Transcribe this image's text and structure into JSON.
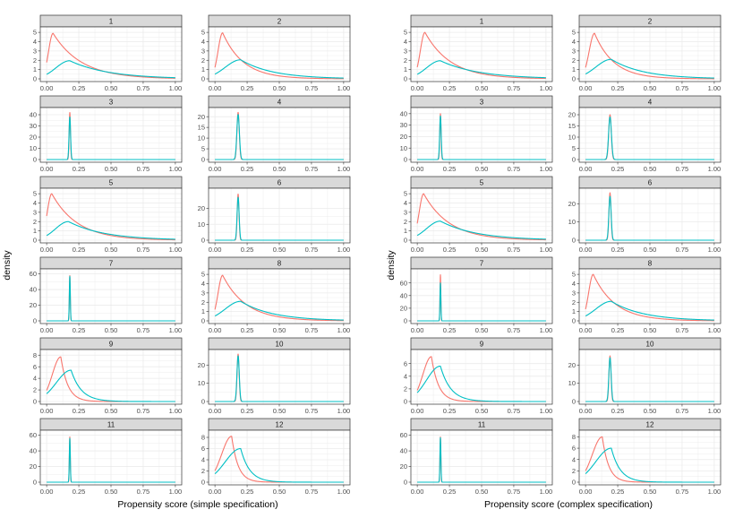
{
  "colors": {
    "treated": "#F8766D",
    "control": "#00BFC4",
    "strip_fill": "#D9D9D9",
    "grid": "#EBEBEB",
    "border": "#333333"
  },
  "chart_data": [
    {
      "type": "line",
      "title": "",
      "xlabel": "Propensity score (simple specification)",
      "ylabel": "density",
      "xlim": [
        0,
        1
      ],
      "x_ticks": [
        "0.00",
        "0.25",
        "0.50",
        "0.75",
        "1.00"
      ],
      "series_names": [
        "red",
        "teal"
      ],
      "panels": [
        {
          "label": "1",
          "ylim": [
            0,
            5.3
          ],
          "y_ticks": [
            0,
            1,
            2,
            3,
            4,
            5
          ],
          "red": {
            "type": "skew",
            "mode": 0.05,
            "peak": 4.9,
            "tail": 0.22
          },
          "teal": {
            "type": "skew",
            "mode": 0.18,
            "peak": 1.95,
            "tail": 0.3
          }
        },
        {
          "label": "2",
          "ylim": [
            0,
            5.3
          ],
          "y_ticks": [
            0,
            1,
            2,
            3,
            4,
            5
          ],
          "red": {
            "type": "skew",
            "mode": 0.06,
            "peak": 4.95,
            "tail": 0.16
          },
          "teal": {
            "type": "skew",
            "mode": 0.2,
            "peak": 2.05,
            "tail": 0.25
          }
        },
        {
          "label": "3",
          "ylim": [
            0,
            44
          ],
          "y_ticks": [
            0,
            10,
            20,
            30,
            40
          ],
          "red": {
            "type": "peak",
            "center": 0.18,
            "peak": 42,
            "sd": 0.005
          },
          "teal": {
            "type": "peak",
            "center": 0.18,
            "peak": 38,
            "sd": 0.006
          }
        },
        {
          "label": "4",
          "ylim": [
            0,
            23
          ],
          "y_ticks": [
            0,
            5,
            10,
            15,
            20
          ],
          "red": {
            "type": "peak",
            "center": 0.18,
            "peak": 22,
            "sd": 0.009
          },
          "teal": {
            "type": "peak",
            "center": 0.18,
            "peak": 21,
            "sd": 0.01
          }
        },
        {
          "label": "5",
          "ylim": [
            0,
            5.3
          ],
          "y_ticks": [
            0,
            1,
            2,
            3,
            4,
            5
          ],
          "red": {
            "type": "skew",
            "mode": 0.04,
            "peak": 5.0,
            "tail": 0.2
          },
          "teal": {
            "type": "skew",
            "mode": 0.17,
            "peak": 2.0,
            "tail": 0.28
          }
        },
        {
          "label": "6",
          "ylim": [
            0,
            31
          ],
          "y_ticks": [
            0,
            10,
            20
          ],
          "red": {
            "type": "peak",
            "center": 0.18,
            "peak": 29,
            "sd": 0.007
          },
          "teal": {
            "type": "peak",
            "center": 0.18,
            "peak": 27,
            "sd": 0.008
          }
        },
        {
          "label": "7",
          "ylim": [
            0,
            63
          ],
          "y_ticks": [
            0,
            20,
            40,
            60
          ],
          "red": {
            "type": "peak",
            "center": 0.18,
            "peak": 58,
            "sd": 0.0035
          },
          "teal": {
            "type": "peak",
            "center": 0.18,
            "peak": 57,
            "sd": 0.0038
          }
        },
        {
          "label": "8",
          "ylim": [
            0,
            5.3
          ],
          "y_ticks": [
            0,
            1,
            2,
            3,
            4,
            5
          ],
          "red": {
            "type": "skew",
            "mode": 0.06,
            "peak": 4.9,
            "tail": 0.18
          },
          "teal": {
            "type": "skew",
            "mode": 0.2,
            "peak": 2.1,
            "tail": 0.25
          }
        },
        {
          "label": "9",
          "ylim": [
            0,
            8.5
          ],
          "y_ticks": [
            0,
            2,
            4,
            6,
            8
          ],
          "red": {
            "type": "skew",
            "mode": 0.11,
            "peak": 7.7,
            "tail": 0.055
          },
          "teal": {
            "type": "skew",
            "mode": 0.19,
            "peak": 5.4,
            "tail": 0.08
          }
        },
        {
          "label": "10",
          "ylim": [
            0,
            27
          ],
          "y_ticks": [
            0,
            10,
            20
          ],
          "red": {
            "type": "peak",
            "center": 0.18,
            "peak": 26,
            "sd": 0.008
          },
          "teal": {
            "type": "peak",
            "center": 0.18,
            "peak": 25,
            "sd": 0.009
          }
        },
        {
          "label": "11",
          "ylim": [
            0,
            63
          ],
          "y_ticks": [
            0,
            20,
            40,
            60
          ],
          "red": {
            "type": "peak",
            "center": 0.18,
            "peak": 58,
            "sd": 0.0035
          },
          "teal": {
            "type": "peak",
            "center": 0.18,
            "peak": 56,
            "sd": 0.0038
          }
        },
        {
          "label": "12",
          "ylim": [
            0,
            8.8
          ],
          "y_ticks": [
            0,
            2,
            4,
            6,
            8
          ],
          "red": {
            "type": "skew",
            "mode": 0.13,
            "peak": 8.2,
            "tail": 0.05
          },
          "teal": {
            "type": "skew",
            "mode": 0.2,
            "peak": 6.0,
            "tail": 0.07
          }
        }
      ]
    },
    {
      "type": "line",
      "title": "",
      "xlabel": "Propensity score (complex specification)",
      "ylabel": "density",
      "xlim": [
        0,
        1
      ],
      "x_ticks": [
        "0.00",
        "0.25",
        "0.50",
        "0.75",
        "1.00"
      ],
      "series_names": [
        "red",
        "teal"
      ],
      "panels": [
        {
          "label": "1",
          "ylim": [
            0,
            5.3
          ],
          "y_ticks": [
            0,
            1,
            2,
            3,
            4,
            5
          ],
          "red": {
            "type": "skew",
            "mode": 0.06,
            "peak": 5.0,
            "tail": 0.2
          },
          "teal": {
            "type": "skew",
            "mode": 0.18,
            "peak": 1.95,
            "tail": 0.3
          }
        },
        {
          "label": "2",
          "ylim": [
            0,
            5.3
          ],
          "y_ticks": [
            0,
            1,
            2,
            3,
            4,
            5
          ],
          "red": {
            "type": "skew",
            "mode": 0.07,
            "peak": 4.9,
            "tail": 0.15
          },
          "teal": {
            "type": "skew",
            "mode": 0.2,
            "peak": 2.1,
            "tail": 0.25
          }
        },
        {
          "label": "3",
          "ylim": [
            0,
            43
          ],
          "y_ticks": [
            0,
            10,
            20,
            30,
            40
          ],
          "red": {
            "type": "peak",
            "center": 0.18,
            "peak": 40,
            "sd": 0.005
          },
          "teal": {
            "type": "peak",
            "center": 0.18,
            "peak": 38,
            "sd": 0.006
          }
        },
        {
          "label": "4",
          "ylim": [
            0,
            22
          ],
          "y_ticks": [
            0,
            5,
            10,
            15,
            20
          ],
          "red": {
            "type": "peak",
            "center": 0.19,
            "peak": 20,
            "sd": 0.01
          },
          "teal": {
            "type": "peak",
            "center": 0.19,
            "peak": 19,
            "sd": 0.011
          }
        },
        {
          "label": "5",
          "ylim": [
            0,
            5.3
          ],
          "y_ticks": [
            0,
            1,
            2,
            3,
            4,
            5
          ],
          "red": {
            "type": "skew",
            "mode": 0.05,
            "peak": 5.0,
            "tail": 0.2
          },
          "teal": {
            "type": "skew",
            "mode": 0.18,
            "peak": 2.05,
            "tail": 0.28
          }
        },
        {
          "label": "6",
          "ylim": [
            0,
            27
          ],
          "y_ticks": [
            0,
            10,
            20
          ],
          "red": {
            "type": "peak",
            "center": 0.19,
            "peak": 26,
            "sd": 0.008
          },
          "teal": {
            "type": "peak",
            "center": 0.19,
            "peak": 24,
            "sd": 0.009
          }
        },
        {
          "label": "7",
          "ylim": [
            0,
            78
          ],
          "y_ticks": [
            0,
            20,
            40,
            60
          ],
          "red": {
            "type": "peak",
            "center": 0.18,
            "peak": 73,
            "sd": 0.0032
          },
          "teal": {
            "type": "peak",
            "center": 0.18,
            "peak": 60,
            "sd": 0.0036
          }
        },
        {
          "label": "8",
          "ylim": [
            0,
            5.3
          ],
          "y_ticks": [
            0,
            1,
            2,
            3,
            4,
            5
          ],
          "red": {
            "type": "skew",
            "mode": 0.06,
            "peak": 5.0,
            "tail": 0.17
          },
          "teal": {
            "type": "skew",
            "mode": 0.2,
            "peak": 2.1,
            "tail": 0.25
          }
        },
        {
          "label": "9",
          "ylim": [
            0,
            7.8
          ],
          "y_ticks": [
            0,
            2,
            4,
            6
          ],
          "red": {
            "type": "skew",
            "mode": 0.11,
            "peak": 7.1,
            "tail": 0.055
          },
          "teal": {
            "type": "skew",
            "mode": 0.18,
            "peak": 5.6,
            "tail": 0.08
          }
        },
        {
          "label": "10",
          "ylim": [
            0,
            27
          ],
          "y_ticks": [
            0,
            10,
            20
          ],
          "red": {
            "type": "peak",
            "center": 0.19,
            "peak": 25,
            "sd": 0.008
          },
          "teal": {
            "type": "peak",
            "center": 0.19,
            "peak": 24,
            "sd": 0.009
          }
        },
        {
          "label": "11",
          "ylim": [
            0,
            63
          ],
          "y_ticks": [
            0,
            20,
            40,
            60
          ],
          "red": {
            "type": "peak",
            "center": 0.18,
            "peak": 58,
            "sd": 0.0035
          },
          "teal": {
            "type": "peak",
            "center": 0.18,
            "peak": 57,
            "sd": 0.0038
          }
        },
        {
          "label": "12",
          "ylim": [
            0,
            8.7
          ],
          "y_ticks": [
            0,
            2,
            4,
            6,
            8
          ],
          "red": {
            "type": "skew",
            "mode": 0.13,
            "peak": 8.0,
            "tail": 0.05
          },
          "teal": {
            "type": "skew",
            "mode": 0.2,
            "peak": 6.0,
            "tail": 0.07
          }
        }
      ]
    }
  ]
}
